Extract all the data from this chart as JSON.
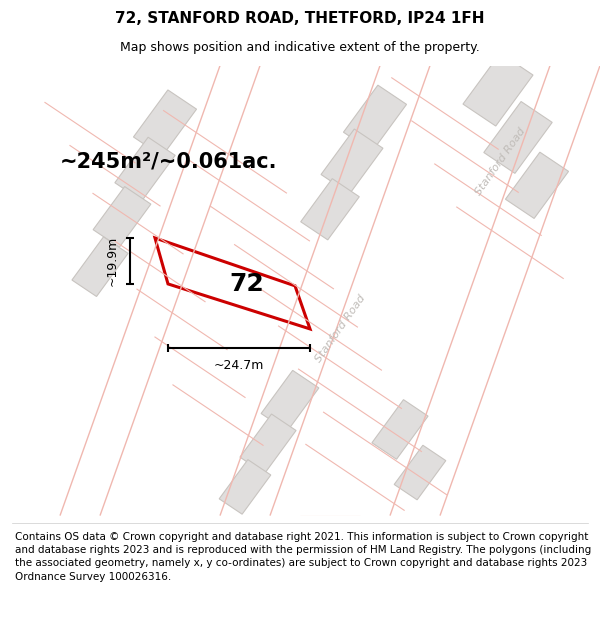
{
  "title": "72, STANFORD ROAD, THETFORD, IP24 1FH",
  "subtitle": "Map shows position and indicative extent of the property.",
  "area_text": "~245m²/~0.061ac.",
  "dim_width": "~24.7m",
  "dim_height": "~19.9m",
  "property_label": "72",
  "footer": "Contains OS data © Crown copyright and database right 2021. This information is subject to Crown copyright and database rights 2023 and is reproduced with the permission of HM Land Registry. The polygons (including the associated geometry, namely x, y co-ordinates) are subject to Crown copyright and database rights 2023 Ordnance Survey 100026316.",
  "map_bg": "#ffffff",
  "road_line_color": "#f0b8b0",
  "property_color": "#cc0000",
  "building_fill": "#e0dedd",
  "building_edge": "#c8c4c0",
  "road_text_color": "#c0bcb8",
  "title_fontsize": 11,
  "subtitle_fontsize": 9,
  "footer_fontsize": 7.5,
  "area_fontsize": 15,
  "label_fontsize": 18,
  "dim_fontsize": 9
}
